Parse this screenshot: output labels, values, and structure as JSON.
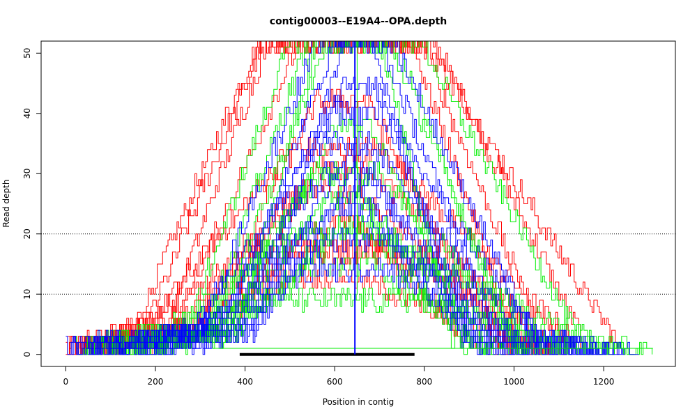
{
  "chart_data": {
    "type": "line",
    "title": "contig00003--E19A4--OPA.depth",
    "xlabel": "Position in contig",
    "ylabel": "Read depth",
    "xlim": [
      -55,
      1360
    ],
    "ylim": [
      -2,
      52
    ],
    "x_ticks": [
      0,
      200,
      400,
      600,
      800,
      1000,
      1200
    ],
    "y_ticks": [
      0,
      10,
      20,
      30,
      40,
      50
    ],
    "reference_lines": [
      {
        "axis": "y",
        "value": 10,
        "style": "dotted",
        "color": "#000000"
      },
      {
        "axis": "y",
        "value": 20,
        "style": "dotted",
        "color": "#000000"
      }
    ],
    "colors": {
      "red": "#ff0000",
      "green": "#00ee00",
      "blue": "#0000ff",
      "black": "#000000"
    },
    "coverage_traces": [
      {
        "color": "red",
        "start": 0,
        "end": 1080,
        "peak": 18,
        "rise": [
          150,
          430
        ],
        "fall": [
          700,
          1040
        ]
      },
      {
        "color": "red",
        "start": 20,
        "end": 1150,
        "peak": 52,
        "rise": [
          150,
          430
        ],
        "fall": [
          820,
          1150
        ]
      },
      {
        "color": "red",
        "start": 10,
        "end": 1230,
        "peak": 52,
        "rise": [
          175,
          440
        ],
        "fall": [
          800,
          1220
        ]
      },
      {
        "color": "red",
        "start": 5,
        "end": 1130,
        "peak": 34,
        "rise": [
          170,
          500
        ],
        "fall": [
          700,
          1120
        ]
      },
      {
        "color": "red",
        "start": 30,
        "end": 1110,
        "peak": 52,
        "rise": [
          220,
          450
        ],
        "fall": [
          770,
          1000
        ]
      },
      {
        "color": "red",
        "start": 40,
        "end": 1100,
        "peak": 31,
        "rise": [
          250,
          560
        ],
        "fall": [
          680,
          1030
        ]
      },
      {
        "color": "red",
        "start": 60,
        "end": 1080,
        "peak": 52,
        "rise": [
          240,
          520
        ],
        "fall": [
          790,
          1060
        ]
      },
      {
        "color": "red",
        "start": 80,
        "end": 1050,
        "peak": 27,
        "rise": [
          260,
          540
        ],
        "fall": [
          650,
          990
        ]
      },
      {
        "color": "red",
        "start": 0,
        "end": 1140,
        "peak": 17,
        "rise": [
          200,
          520
        ],
        "fall": [
          800,
          1100
        ]
      },
      {
        "color": "red",
        "start": 100,
        "end": 1080,
        "peak": 42,
        "rise": [
          300,
          560
        ],
        "fall": [
          670,
          950
        ]
      },
      {
        "color": "red",
        "start": 90,
        "end": 1000,
        "peak": 23,
        "rise": [
          330,
          600
        ],
        "fall": [
          640,
          880
        ]
      },
      {
        "color": "red",
        "start": 50,
        "end": 1000,
        "peak": 13,
        "rise": [
          240,
          500
        ],
        "fall": [
          640,
          950
        ]
      },
      {
        "color": "green",
        "start": 20,
        "end": 1310,
        "peak": 52,
        "rise": [
          270,
          500
        ],
        "fall": [
          790,
          1140
        ]
      },
      {
        "color": "green",
        "start": 40,
        "end": 1270,
        "peak": 20,
        "rise": [
          240,
          510
        ],
        "fall": [
          680,
          1150
        ]
      },
      {
        "color": "green",
        "start": 60,
        "end": 1220,
        "peak": 52,
        "rise": [
          310,
          540
        ],
        "fall": [
          720,
          1000
        ]
      },
      {
        "color": "green",
        "start": 80,
        "end": 1100,
        "peak": 30,
        "rise": [
          300,
          560
        ],
        "fall": [
          700,
          1020
        ]
      },
      {
        "color": "green",
        "start": 100,
        "end": 1050,
        "peak": 52,
        "rise": [
          330,
          580
        ],
        "fall": [
          740,
          980
        ]
      },
      {
        "color": "green",
        "start": 120,
        "end": 1030,
        "peak": 26,
        "rise": [
          340,
          590
        ],
        "fall": [
          650,
          940
        ]
      },
      {
        "color": "green",
        "start": 150,
        "end": 980,
        "peak": 38,
        "rise": [
          360,
          600
        ],
        "fall": [
          680,
          900
        ]
      },
      {
        "color": "green",
        "start": 170,
        "end": 960,
        "peak": 15,
        "rise": [
          300,
          560
        ],
        "fall": [
          680,
          920
        ]
      },
      {
        "color": "green",
        "start": 180,
        "end": 900,
        "peak": 52,
        "rise": [
          380,
          560
        ],
        "fall": [
          700,
          860
        ]
      },
      {
        "color": "green",
        "start": 200,
        "end": 940,
        "peak": 22,
        "rise": [
          380,
          620
        ],
        "fall": [
          660,
          890
        ]
      },
      {
        "color": "green",
        "start": 40,
        "end": 1200,
        "peak": 9,
        "rise": [
          200,
          480
        ],
        "fall": [
          780,
          1100
        ]
      },
      {
        "color": "blue",
        "start": 0,
        "end": 1240,
        "peak": 52,
        "rise": [
          300,
          560
        ],
        "fall": [
          730,
          1040
        ]
      },
      {
        "color": "blue",
        "start": 10,
        "end": 1280,
        "peak": 40,
        "rise": [
          330,
          580
        ],
        "fall": [
          700,
          1050
        ]
      },
      {
        "color": "blue",
        "start": 30,
        "end": 1200,
        "peak": 52,
        "rise": [
          350,
          600
        ],
        "fall": [
          700,
          960
        ]
      },
      {
        "color": "blue",
        "start": 50,
        "end": 1180,
        "peak": 35,
        "rise": [
          280,
          560
        ],
        "fall": [
          680,
          1020
        ]
      },
      {
        "color": "blue",
        "start": 70,
        "end": 1150,
        "peak": 45,
        "rise": [
          380,
          620
        ],
        "fall": [
          690,
          900
        ]
      },
      {
        "color": "blue",
        "start": 90,
        "end": 1120,
        "peak": 30,
        "rise": [
          320,
          580
        ],
        "fall": [
          660,
          980
        ]
      },
      {
        "color": "blue",
        "start": 110,
        "end": 1090,
        "peak": 24,
        "rise": [
          300,
          600
        ],
        "fall": [
          650,
          950
        ]
      },
      {
        "color": "blue",
        "start": 130,
        "end": 1060,
        "peak": 52,
        "rise": [
          420,
          620
        ],
        "fall": [
          680,
          880
        ]
      },
      {
        "color": "blue",
        "start": 150,
        "end": 1030,
        "peak": 19,
        "rise": [
          280,
          580
        ],
        "fall": [
          700,
          1000
        ]
      },
      {
        "color": "blue",
        "start": 170,
        "end": 1000,
        "peak": 33,
        "rise": [
          400,
          620
        ],
        "fall": [
          660,
          900
        ]
      },
      {
        "color": "blue",
        "start": 190,
        "end": 980,
        "peak": 14,
        "rise": [
          300,
          560
        ],
        "fall": [
          720,
          960
        ]
      },
      {
        "color": "blue",
        "start": 210,
        "end": 960,
        "peak": 27,
        "rise": [
          420,
          620
        ],
        "fall": [
          660,
          880
        ]
      }
    ],
    "annotations": [
      {
        "type": "segment",
        "color": "green",
        "x": [
          330,
          1310
        ],
        "y": 1
      },
      {
        "type": "segment",
        "color": "black",
        "x": [
          388,
          778
        ],
        "y": 0
      },
      {
        "type": "spike",
        "color": "blue",
        "x": 645,
        "y": [
          0,
          52
        ]
      },
      {
        "type": "spike",
        "color": "green",
        "x": 650,
        "y": [
          10,
          52
        ]
      }
    ]
  }
}
